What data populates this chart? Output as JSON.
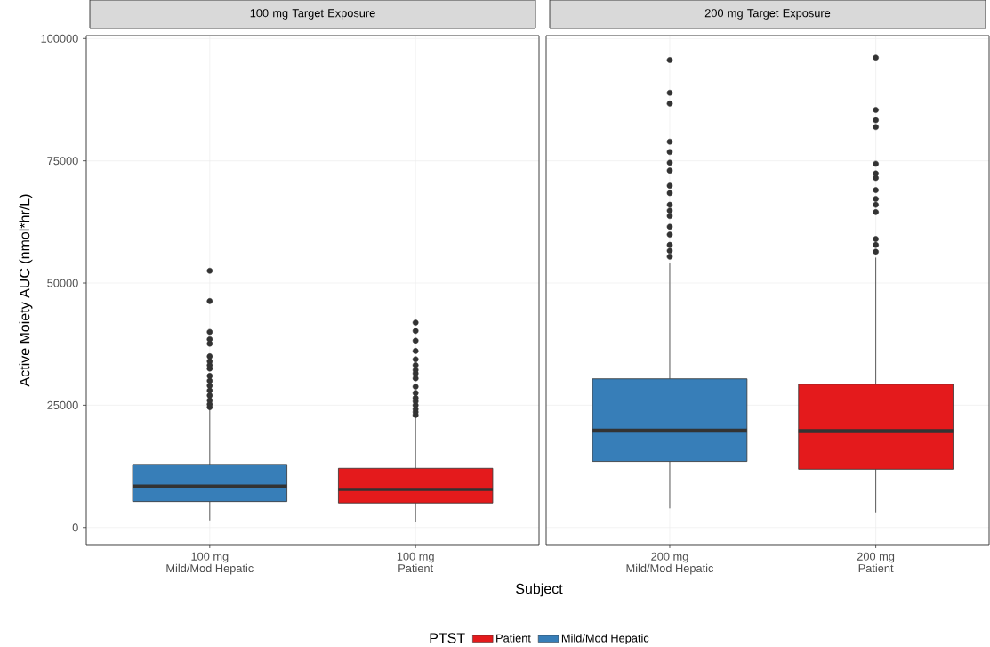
{
  "chart_data": [
    {
      "type": "box",
      "title": "100 mg Target Exposure",
      "xlabel": "Subject",
      "ylabel": "Active Moiety AUC (nmol*hr/L)",
      "legend_title": "PTST",
      "legend": "bottom",
      "grid": true,
      "categories": [
        "100 mg\nMild/Mod Hepatic",
        "100 mg\nPatient"
      ],
      "ylim": [
        -3500,
        100600
      ],
      "yticks": [
        0,
        25000,
        50000,
        75000,
        100000
      ],
      "series": [
        {
          "name": "Patient",
          "color": "#e41a1c",
          "boxes": [
            null,
            {
              "low": 1200,
              "q1": 5000,
              "median": 7800,
              "q3": 12100,
              "high": 22600,
              "outliers": [
                23000,
                23600,
                24200,
                25000,
                25800,
                26500,
                27500,
                28800,
                30500,
                31500,
                32200,
                33200,
                34400,
                36100,
                38200,
                40200,
                41900
              ]
            }
          ]
        },
        {
          "name": "Mild/Mod Hepatic",
          "color": "#377eb8",
          "boxes": [
            {
              "low": 1450,
              "q1": 5300,
              "median": 8450,
              "q3": 12900,
              "high": 24200,
              "outliers": [
                24600,
                25200,
                26000,
                27000,
                28000,
                29000,
                30000,
                31000,
                32500,
                33200,
                34000,
                35000,
                37600,
                38500,
                40000,
                46300,
                52500
              ]
            },
            null
          ]
        }
      ]
    },
    {
      "type": "box",
      "title": "200 mg Target Exposure",
      "legend": false,
      "grid": true,
      "tick_labels": "x",
      "categories": [
        "200 mg\nMild/Mod Hepatic",
        "200 mg\nPatient"
      ],
      "ylim": [
        -3500,
        100600
      ],
      "yticks": [
        0,
        25000,
        50000,
        75000,
        100000
      ],
      "series": [
        {
          "color": "#e41a1c",
          "boxes": [
            null,
            {
              "low": 3100,
              "q1": 11900,
              "median": 19800,
              "q3": 29300,
              "high": 55200,
              "outliers": [
                56400,
                57800,
                59000,
                64500,
                66000,
                67200,
                69000,
                71500,
                72400,
                74400,
                81900,
                83300,
                85400,
                96100
              ]
            }
          ]
        },
        {
          "color": "#377eb8",
          "boxes": [
            {
              "low": 3900,
              "q1": 13500,
              "median": 19900,
              "q3": 30400,
              "high": 54000,
              "outliers": [
                55400,
                56600,
                57800,
                59900,
                61500,
                63700,
                64800,
                66000,
                68400,
                69900,
                73000,
                74600,
                76800,
                78900,
                86700,
                88900,
                95600
              ]
            },
            null
          ]
        }
      ]
    }
  ]
}
